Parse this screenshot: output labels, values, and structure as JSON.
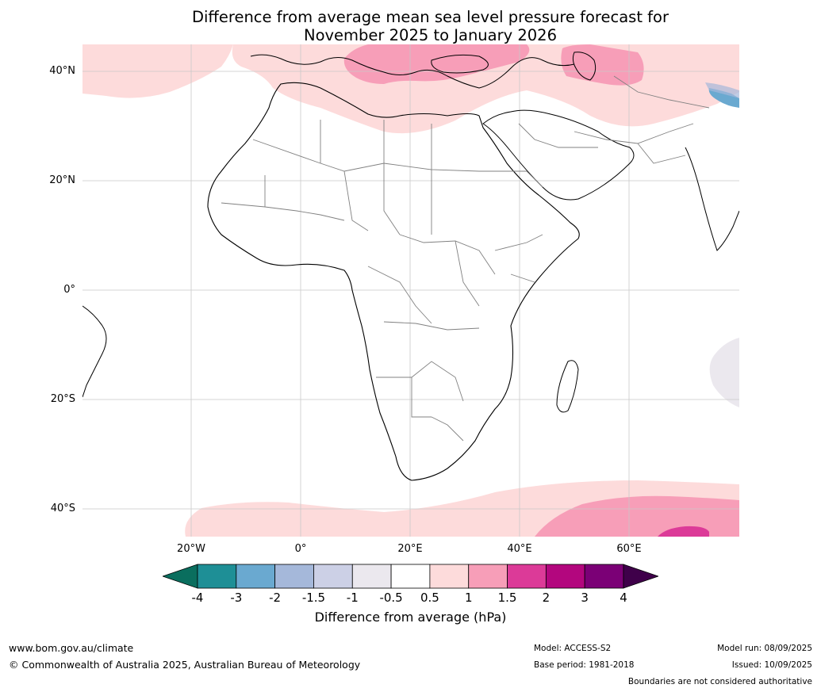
{
  "title_line1": "Difference from average mean sea level pressure forecast for",
  "title_line2": "November 2025 to January 2026",
  "lat_labels": [
    "40°N",
    "20°N",
    "0°",
    "20°S",
    "40°S"
  ],
  "lon_labels": [
    "20°W",
    "0°",
    "20°E",
    "40°E",
    "60°E"
  ],
  "colorbar": {
    "ticks": [
      "-4",
      "-3",
      "-2",
      "-1.5",
      "-1",
      "-0.5",
      "0.5",
      "1",
      "1.5",
      "2",
      "3",
      "4"
    ],
    "colors": [
      "#0a6e5e",
      "#1e8f96",
      "#6aa9d0",
      "#a5b8da",
      "#ccd0e6",
      "#ebe8ee",
      "#ffffff",
      "#fddbdb",
      "#f79eb8",
      "#dc3a98",
      "#b3067e",
      "#7b0076",
      "#3f004a"
    ],
    "label": "Difference from average (hPa)"
  },
  "footer": {
    "url": "www.bom.gov.au/climate",
    "copyright": "© Commonwealth of Australia 2025, Australian Bureau of Meteorology",
    "model": "Model: ACCESS-S2",
    "base_period": "Base period: 1981-2018",
    "model_run": "Model run: 08/09/2025",
    "issued": "Issued: 10/09/2025",
    "disclaimer": "Boundaries are not considered authoritative"
  }
}
